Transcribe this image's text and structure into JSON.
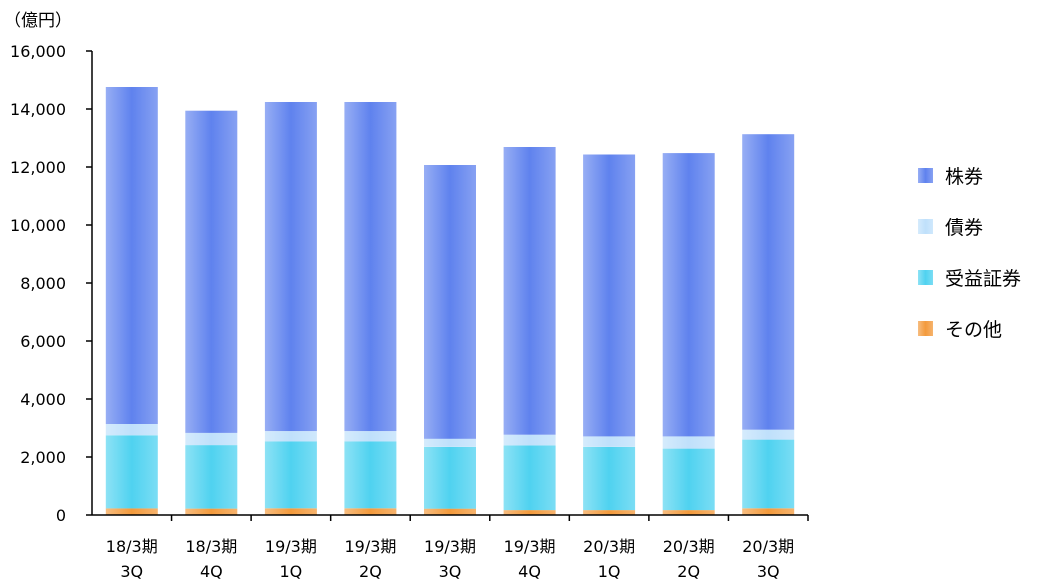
{
  "chart_data": {
    "type": "bar",
    "stacked": true,
    "unit_label": "（億円）",
    "categories": [
      [
        "18/3期",
        "3Q"
      ],
      [
        "18/3期",
        "4Q"
      ],
      [
        "19/3期",
        "1Q"
      ],
      [
        "19/3期",
        "2Q"
      ],
      [
        "19/3期",
        "3Q"
      ],
      [
        "19/3期",
        "4Q"
      ],
      [
        "20/3期",
        "1Q"
      ],
      [
        "20/3期",
        "2Q"
      ],
      [
        "20/3期",
        "3Q"
      ]
    ],
    "series": [
      {
        "name": "その他",
        "color": "#f39a3c",
        "values": [
          230,
          220,
          230,
          230,
          220,
          170,
          170,
          170,
          230
        ]
      },
      {
        "name": "受益証券",
        "color": "#4fd2f0",
        "values": [
          2520,
          2190,
          2310,
          2310,
          2130,
          2230,
          2180,
          2120,
          2370
        ]
      },
      {
        "name": "債券",
        "color": "#bfe0fb",
        "values": [
          390,
          420,
          350,
          350,
          280,
          370,
          360,
          420,
          340
        ]
      },
      {
        "name": "株券",
        "color": "#5f82ee",
        "values": [
          11620,
          11110,
          11350,
          11350,
          9440,
          9920,
          9720,
          9770,
          10190
        ]
      }
    ],
    "totals": [
      14760,
      13940,
      14240,
      14240,
      12070,
      12690,
      12430,
      12480,
      13130
    ],
    "ylim": [
      0,
      16000
    ],
    "yticks": [
      0,
      2000,
      4000,
      6000,
      8000,
      10000,
      12000,
      14000,
      16000
    ],
    "ytick_labels": [
      "0",
      "2,000",
      "4,000",
      "6,000",
      "8,000",
      "10,000",
      "12,000",
      "14,000",
      "16,000"
    ],
    "legend_order": [
      "株券",
      "債券",
      "受益証券",
      "その他"
    ],
    "legend_position": "right",
    "grid": false
  }
}
